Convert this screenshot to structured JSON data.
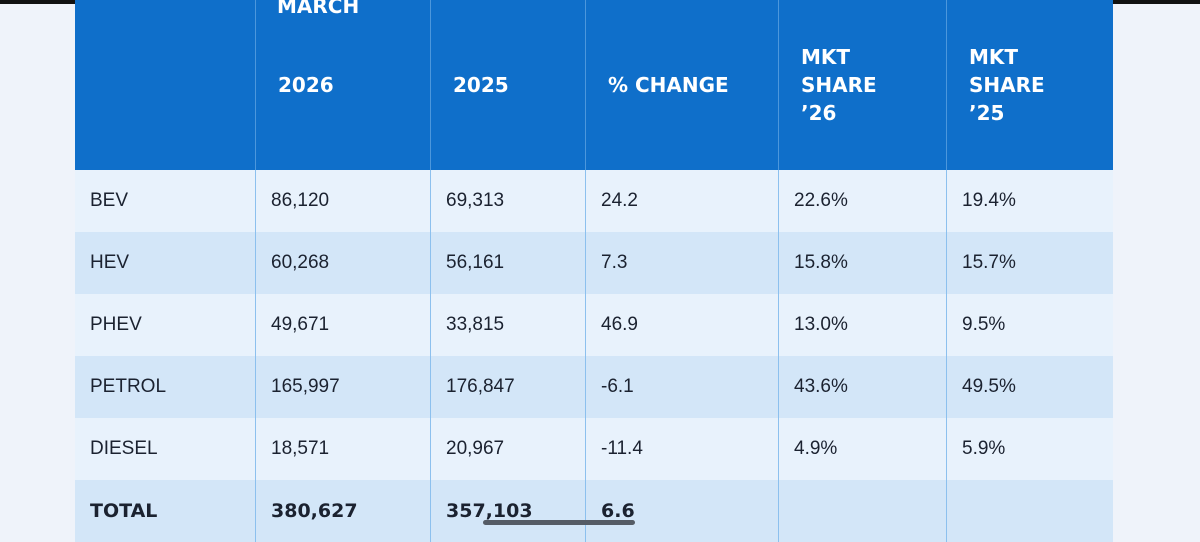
{
  "header": {
    "group": "MARCH",
    "columns": [
      [
        "2026"
      ],
      [
        "2025"
      ],
      [
        "% CHANGE"
      ],
      [
        "MKT",
        "SHARE",
        "’26"
      ],
      [
        "MKT",
        "SHARE",
        "’25"
      ]
    ]
  },
  "table": {
    "rows": [
      [
        "BEV",
        "86,120",
        "69,313",
        "24.2",
        "22.6%",
        "19.4%"
      ],
      [
        "HEV",
        "60,268",
        "56,161",
        "7.3",
        "15.8%",
        "15.7%"
      ],
      [
        "PHEV",
        "49,671",
        "33,815",
        "46.9",
        "13.0%",
        "9.5%"
      ],
      [
        "PETROL",
        "165,997",
        "176,847",
        "-6.1",
        "43.6%",
        "49.5%"
      ],
      [
        "DIESEL",
        "18,571",
        "20,967",
        "-11.4",
        "4.9%",
        "5.9%"
      ],
      [
        "TOTAL",
        "380,627",
        "357,103",
        "6.6"
      ]
    ]
  }
}
